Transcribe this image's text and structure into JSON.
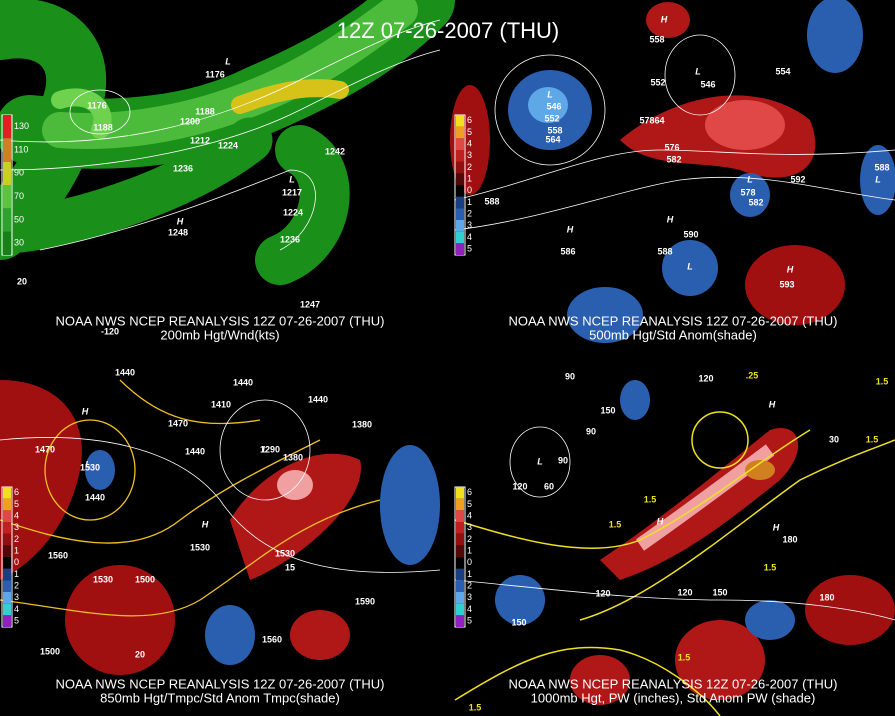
{
  "title": "12Z 07-26-2007 (THU)",
  "panels": [
    {
      "caption": "NOAA NWS NCEP REANALYSIS 12Z 07-26-2007 (THU)",
      "subtitle": "200mb Hgt/Wnd(kts)",
      "legend": [
        "130",
        "110",
        "90",
        "70",
        "50",
        "30"
      ],
      "labels": [
        "1176",
        "1176",
        "1188",
        "1188",
        "1200",
        "1212",
        "1224",
        "1236",
        "1242",
        "1217",
        "1224",
        "1236",
        "1248",
        "1247",
        "H",
        "L",
        "L",
        "20",
        "-120"
      ]
    },
    {
      "caption": "NOAA NWS NCEP REANALYSIS 12Z 07-26-2007 (THU)",
      "subtitle": "500mb Hgt/Std Anom(shade)",
      "legend": [
        "6",
        "5",
        "4",
        "3",
        "2",
        "1",
        "0",
        "1",
        "2",
        "3",
        "4",
        "5"
      ],
      "labels": [
        "546",
        "552",
        "558",
        "564",
        "558",
        "552",
        "546",
        "57864",
        "576",
        "582",
        "588",
        "588",
        "586",
        "590",
        "578",
        "582",
        "592",
        "588",
        "593",
        "554",
        "L",
        "L",
        "L",
        "H",
        "H",
        "L",
        "L",
        "H",
        "H"
      ]
    },
    {
      "caption": "NOAA NWS NCEP REANALYSIS 12Z 07-26-2007 (THU)",
      "subtitle": "850mb Hgt/Tmpc/Std Anom Tmpc(shade)",
      "legend": [
        "6",
        "5",
        "4",
        "3",
        "2",
        "1",
        "0",
        "1",
        "2",
        "3",
        "4",
        "5"
      ],
      "labels": [
        "1440",
        "1440",
        "1410",
        "1470",
        "1440",
        "1440",
        "1380",
        "1290",
        "1380",
        "1470",
        "1530",
        "1440",
        "1560",
        "1530",
        "1500",
        "1530",
        "1530",
        "1590",
        "1560",
        "1500",
        "20",
        "15",
        "H",
        "H",
        "L",
        "L"
      ]
    },
    {
      "caption": "NOAA NWS NCEP REANALYSIS 12Z 07-26-2007 (THU)",
      "subtitle": "1000mb Hgt, PW (inches), Std Anom PW (shade)",
      "legend": [
        "6",
        "5",
        "4",
        "3",
        "2",
        "1",
        "0",
        "1",
        "2",
        "3",
        "4",
        "5"
      ],
      "labels": [
        "90",
        "120",
        "150",
        "90",
        "90",
        "120",
        "60",
        "30",
        "180",
        "120",
        "120",
        "150",
        "180",
        "150",
        "1.5",
        ".25",
        "1.5",
        "1.5",
        "1.5",
        "1.5",
        "1.5",
        "1.5",
        "L",
        "H",
        "H",
        "H"
      ]
    }
  ]
}
